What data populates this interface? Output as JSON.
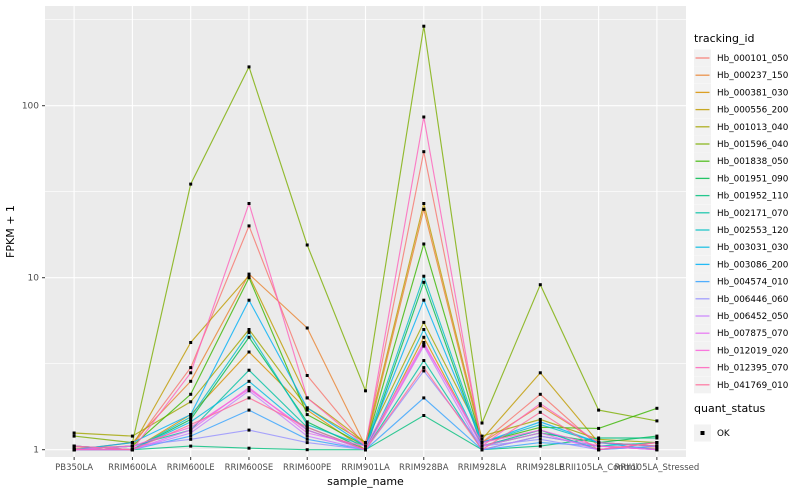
{
  "chart_data": {
    "type": "line",
    "title": "",
    "xlabel": "sample_name",
    "ylabel": "FPKM + 1",
    "y_scale": "log10",
    "y_ticks": [
      1,
      10,
      100
    ],
    "y_tick_labels": [
      "1",
      "10",
      "100"
    ],
    "y_minor_ticks": [
      3.162,
      31.62,
      316.2
    ],
    "ylim": [
      0.93,
      400
    ],
    "grid": "on",
    "panel_bg": "#EBEBEB",
    "grid_color": "#FFFFFF",
    "point_color": "#000000",
    "legend_position": "right",
    "legend_title": "tracking_id",
    "quant_legend_title": "quant_status",
    "quant_legend_items": [
      {
        "label": "OK",
        "symbol": "black-square"
      }
    ],
    "categories": [
      "PB350LA",
      "RRIM600LA",
      "RRIM600LE",
      "RRIM600SE",
      "RRIM600PE",
      "RRIM901LA",
      "RRIM928BA",
      "RRIM928LA",
      "RRIM928LE",
      "RRII105LA_Control",
      "RRII105LA_Stressed"
    ],
    "series": [
      {
        "name": "Hb_000101_050",
        "color": "#F8766D",
        "values": [
          1.02,
          1.05,
          3.0,
          20,
          2.7,
          1.05,
          54,
          1.1,
          2.1,
          1.05,
          1.02
        ]
      },
      {
        "name": "Hb_000237_150",
        "color": "#EA8331",
        "values": [
          1.0,
          1.1,
          2.5,
          10.5,
          5.1,
          1.05,
          25,
          1.1,
          1.8,
          1.1,
          1.05
        ]
      },
      {
        "name": "Hb_000381_030",
        "color": "#D89000",
        "values": [
          1.05,
          1.0,
          1.6,
          3.7,
          1.7,
          1.0,
          4.5,
          1.05,
          1.3,
          1.0,
          1.1
        ]
      },
      {
        "name": "Hb_000556_200",
        "color": "#C09B00",
        "values": [
          1.0,
          1.05,
          4.2,
          10.3,
          2.0,
          1.1,
          27,
          1.15,
          2.8,
          1.1,
          1.05
        ]
      },
      {
        "name": "Hb_001013_040",
        "color": "#A3A500",
        "values": [
          1.25,
          1.2,
          1.9,
          5.0,
          1.75,
          1.1,
          5.5,
          1.2,
          1.5,
          1.15,
          1.1
        ]
      },
      {
        "name": "Hb_001596_040",
        "color": "#7CAE00",
        "values": [
          1.2,
          1.1,
          35,
          168,
          15.5,
          2.2,
          290,
          1.43,
          9.1,
          1.7,
          1.47
        ]
      },
      {
        "name": "Hb_001838_050",
        "color": "#39B600",
        "values": [
          1.0,
          1.05,
          2.1,
          10.0,
          1.6,
          1.05,
          15.7,
          1.1,
          1.35,
          1.33,
          1.74
        ]
      },
      {
        "name": "Hb_001951_090",
        "color": "#00BB4E",
        "values": [
          1.05,
          1.0,
          1.5,
          4.5,
          1.45,
          1.0,
          9.4,
          1.05,
          1.25,
          1.1,
          1.2
        ]
      },
      {
        "name": "Hb_001952_110",
        "color": "#00BF7D",
        "values": [
          1.0,
          1.0,
          1.05,
          1.02,
          1.0,
          1.0,
          1.58,
          1.0,
          1.05,
          1.17,
          1.17
        ]
      },
      {
        "name": "Hb_002171_070",
        "color": "#00C1A3",
        "values": [
          1.0,
          1.05,
          1.3,
          2.9,
          1.35,
          1.0,
          3.3,
          1.0,
          1.2,
          1.05,
          1.1
        ]
      },
      {
        "name": "Hb_002553_120",
        "color": "#00BFC4",
        "values": [
          1.0,
          1.0,
          1.55,
          4.8,
          1.4,
          1.05,
          10.2,
          1.1,
          1.4,
          1.1,
          1.05
        ]
      },
      {
        "name": "Hb_003031_030",
        "color": "#00BAE0",
        "values": [
          1.05,
          1.0,
          1.45,
          2.5,
          1.3,
          1.0,
          5.0,
          1.05,
          1.3,
          1.0,
          1.05
        ]
      },
      {
        "name": "Hb_003086_200",
        "color": "#00B0F6",
        "values": [
          1.0,
          1.1,
          1.6,
          7.4,
          1.75,
          1.05,
          7.4,
          1.1,
          1.45,
          1.1,
          1.0
        ]
      },
      {
        "name": "Hb_004574_010",
        "color": "#35A2FF",
        "values": [
          1.0,
          1.0,
          1.2,
          1.7,
          1.15,
          1.0,
          2.0,
          1.0,
          1.1,
          1.05,
          1.0
        ]
      },
      {
        "name": "Hb_006446_060",
        "color": "#9590FF",
        "values": [
          1.0,
          1.05,
          1.15,
          1.3,
          1.1,
          1.0,
          2.87,
          1.05,
          1.15,
          1.0,
          1.05
        ]
      },
      {
        "name": "Hb_006452_050",
        "color": "#C77CFF",
        "values": [
          1.05,
          1.0,
          1.25,
          2.2,
          1.2,
          1.0,
          4.0,
          1.0,
          1.2,
          1.05,
          1.0
        ]
      },
      {
        "name": "Hb_007875_070",
        "color": "#E76BF3",
        "values": [
          1.0,
          1.0,
          1.3,
          2.3,
          1.25,
          1.05,
          4.2,
          1.05,
          1.25,
          1.0,
          1.1
        ]
      },
      {
        "name": "Hb_012019_020",
        "color": "#FA62DB",
        "values": [
          1.0,
          1.05,
          1.35,
          2.25,
          1.3,
          1.0,
          4.1,
          1.1,
          1.3,
          1.05,
          1.0
        ]
      },
      {
        "name": "Hb_012395_070",
        "color": "#FF62BC",
        "values": [
          1.0,
          1.0,
          2.8,
          27,
          2.0,
          1.05,
          86,
          1.05,
          1.85,
          1.1,
          1.05
        ]
      },
      {
        "name": "Hb_041769_010",
        "color": "#FF6A98",
        "values": [
          1.05,
          1.0,
          1.4,
          2.0,
          1.35,
          1.0,
          3.0,
          1.0,
          1.65,
          1.0,
          1.1
        ]
      }
    ]
  }
}
